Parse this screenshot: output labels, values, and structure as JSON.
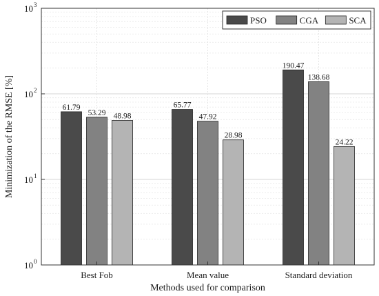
{
  "chart_data": {
    "type": "bar",
    "title": "",
    "xlabel": "Methods used for comparison",
    "ylabel": "Minimization of the RMSE [%]",
    "yscale": "log",
    "ylim": [
      1,
      1000
    ],
    "grid": true,
    "legend_position": "top-right",
    "categories": [
      "Best Fob",
      "Mean value",
      "Standard deviation"
    ],
    "series": [
      {
        "name": "PSO",
        "color": "#4a4a4a",
        "values": [
          61.79,
          65.77,
          190.47
        ],
        "labels": [
          "61.79",
          "65.77",
          "190.47"
        ]
      },
      {
        "name": "CGA",
        "color": "#828282",
        "values": [
          53.29,
          47.92,
          138.68
        ],
        "labels": [
          "53.29",
          "47.92",
          "138.68"
        ]
      },
      {
        "name": "SCA",
        "color": "#b4b4b4",
        "values": [
          48.98,
          28.98,
          24.22
        ],
        "labels": [
          "48.98",
          "28.98",
          "24.22"
        ]
      }
    ],
    "yticks": [
      {
        "value": 1,
        "base": "10",
        "exp": "0"
      },
      {
        "value": 10,
        "base": "10",
        "exp": "1"
      },
      {
        "value": 100,
        "base": "10",
        "exp": "2"
      },
      {
        "value": 1000,
        "base": "10",
        "exp": "3"
      }
    ]
  }
}
